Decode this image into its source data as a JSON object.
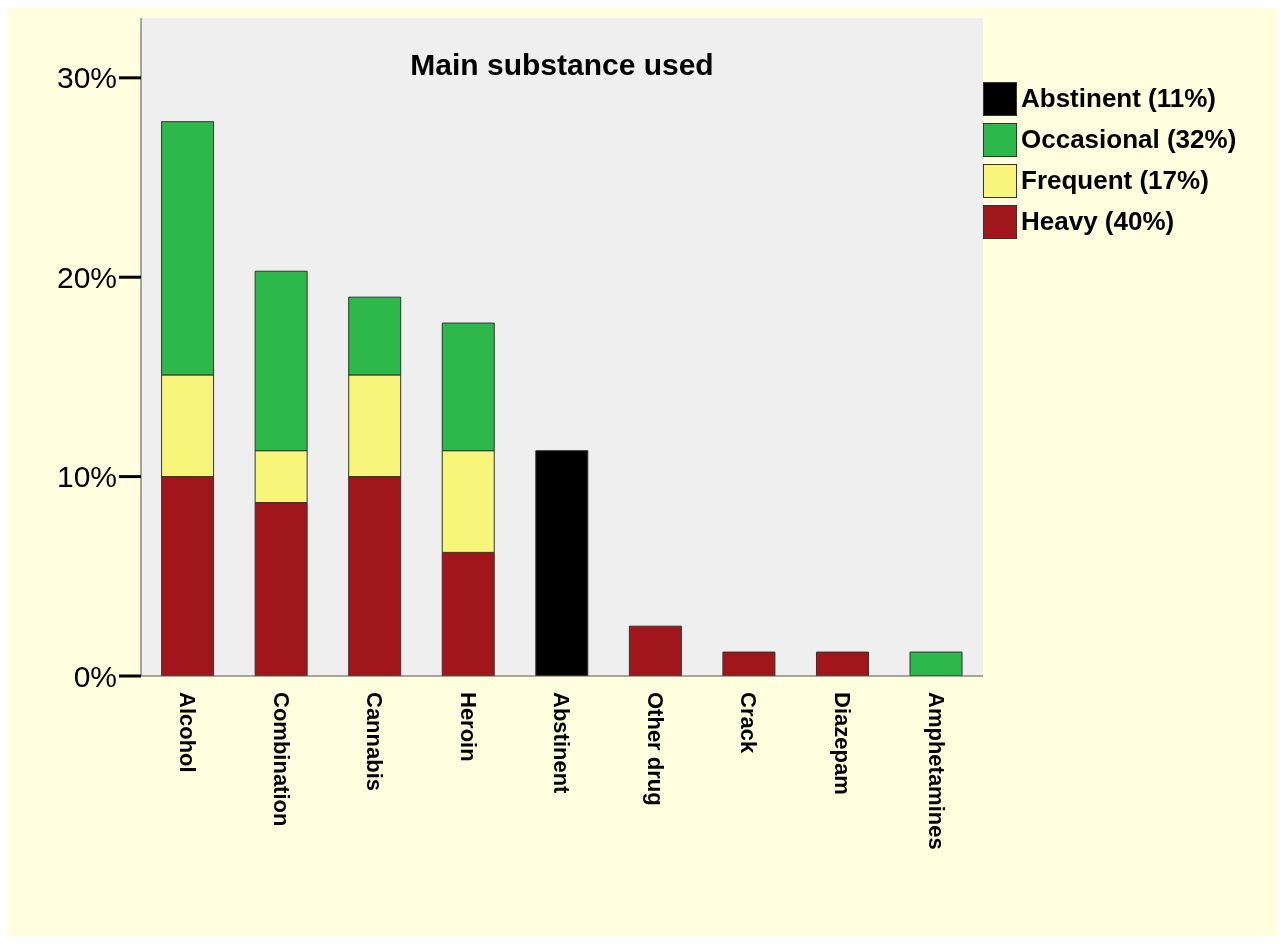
{
  "chart_data": {
    "type": "bar",
    "title": "Main substance used",
    "stacked": true,
    "categories": [
      "Alcohol",
      "Combination",
      "Cannabis",
      "Heroin",
      "Abstinent",
      "Other drug",
      "Crack",
      "Diazepam",
      "Amphetamines"
    ],
    "series": [
      {
        "name": "Heavy (40%)",
        "color": "#a0161b",
        "values": [
          10.0,
          8.7,
          10.0,
          6.2,
          null,
          2.5,
          1.2,
          1.2,
          null
        ]
      },
      {
        "name": "Frequent (17%)",
        "color": "#f8f67a",
        "values": [
          5.1,
          2.6,
          5.1,
          5.1,
          null,
          null,
          null,
          null,
          null
        ]
      },
      {
        "name": "Occasional (32%)",
        "color": "#2db84b",
        "values": [
          12.7,
          9.0,
          3.9,
          6.4,
          null,
          null,
          null,
          null,
          1.2
        ]
      },
      {
        "name": "Abstinent (11%)",
        "color": "#000000",
        "values": [
          null,
          null,
          null,
          null,
          11.3,
          null,
          null,
          null,
          null
        ]
      }
    ],
    "ylim": [
      0,
      33
    ],
    "yticks": [
      {
        "value": 0,
        "label": "0%"
      },
      {
        "value": 10,
        "label": "10%"
      },
      {
        "value": 20,
        "label": "20%"
      },
      {
        "value": 30,
        "label": "30%"
      }
    ],
    "grid": false,
    "legend": "right"
  }
}
